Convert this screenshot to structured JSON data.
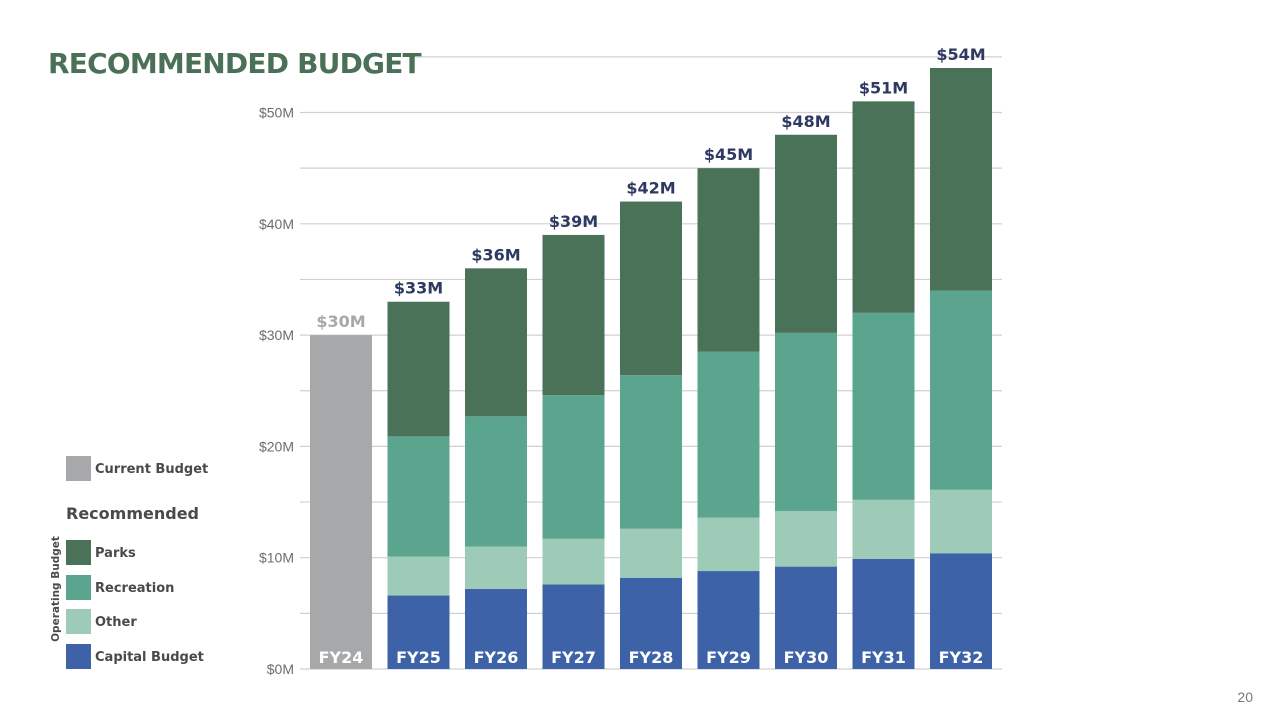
{
  "page": {
    "title": "RECOMMENDED BUDGET",
    "page_number": "20"
  },
  "colors": {
    "current": "#a7a8aa",
    "parks": "#4a7259",
    "recreation": "#5ba48d",
    "other": "#9dcbb7",
    "capital": "#3d62a8",
    "total_label": "#2e3a62",
    "title": "#4a7157",
    "grid": "#d0d0d0"
  },
  "legend": {
    "current_label": "Current Budget",
    "heading": "Recommended",
    "group_label": "Operating Budget",
    "parks_label": "Parks",
    "recreation_label": "Recreation",
    "other_label": "Other",
    "capital_label": "Capital Budget"
  },
  "chart_data": {
    "type": "bar",
    "stacked": true,
    "title": "RECOMMENDED BUDGET",
    "xlabel": "",
    "ylabel": "",
    "ylim": [
      0,
      55
    ],
    "y_unit": "$M",
    "yticks": [
      0,
      10,
      20,
      30,
      40,
      50
    ],
    "ytick_labels": [
      "$0M",
      "$10M",
      "$20M",
      "$30M",
      "$40M",
      "$50M"
    ],
    "minor_grid_step": 5,
    "grid": true,
    "legend_position": "left",
    "categories": [
      "FY24",
      "FY25",
      "FY26",
      "FY27",
      "FY28",
      "FY29",
      "FY30",
      "FY31",
      "FY32"
    ],
    "series": [
      {
        "name": "Current Budget",
        "key": "current",
        "values": [
          30,
          0,
          0,
          0,
          0,
          0,
          0,
          0,
          0
        ]
      },
      {
        "name": "Capital Budget",
        "key": "capital",
        "values": [
          0,
          6.6,
          7.2,
          7.6,
          8.2,
          8.8,
          9.2,
          9.9,
          10.4
        ]
      },
      {
        "name": "Other",
        "key": "other",
        "values": [
          0,
          3.5,
          3.8,
          4.1,
          4.4,
          4.8,
          5.0,
          5.3,
          5.7
        ]
      },
      {
        "name": "Recreation",
        "key": "recreation",
        "values": [
          0,
          10.8,
          11.7,
          12.9,
          13.8,
          14.9,
          16.0,
          16.8,
          17.9
        ]
      },
      {
        "name": "Parks",
        "key": "parks",
        "values": [
          0,
          12.1,
          13.3,
          14.4,
          15.6,
          16.5,
          17.8,
          19.0,
          20.0
        ]
      }
    ],
    "totals": [
      30,
      33,
      36,
      39,
      42,
      45,
      48,
      51,
      54
    ],
    "total_labels": [
      "$30M",
      "$33M",
      "$36M",
      "$39M",
      "$42M",
      "$45M",
      "$48M",
      "$51M",
      "$54M"
    ]
  }
}
